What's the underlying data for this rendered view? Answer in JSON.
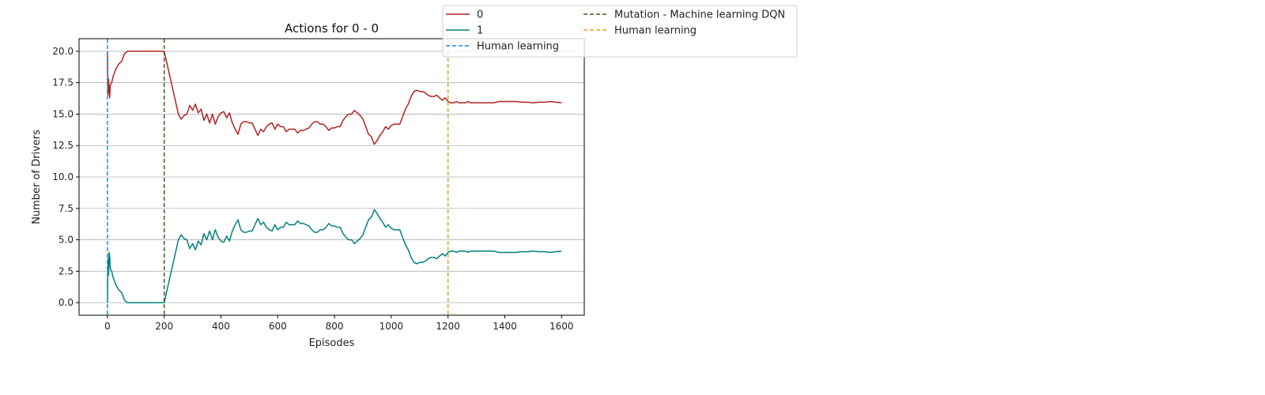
{
  "chart_data": {
    "type": "line",
    "title": "Actions for 0 - 0",
    "xlabel": "Episodes",
    "ylabel": "Number of Drivers",
    "xlim": [
      -100,
      1680
    ],
    "ylim": [
      -1,
      21
    ],
    "xticks": [
      0,
      200,
      400,
      600,
      800,
      1000,
      1200,
      1400,
      1600
    ],
    "yticks": [
      0.0,
      2.5,
      5.0,
      7.5,
      10.0,
      12.5,
      15.0,
      17.5,
      20.0
    ],
    "ytick_labels": [
      "0.0",
      "2.5",
      "5.0",
      "7.5",
      "10.0",
      "12.5",
      "15.0",
      "17.5",
      "20.0"
    ],
    "grid": "horizontal",
    "legend_position": "upper-center-outside",
    "series": [
      {
        "name": "0",
        "color": "#b22222",
        "x": [
          0,
          2,
          4,
          6,
          8,
          10,
          15,
          20,
          30,
          40,
          50,
          60,
          70,
          80,
          100,
          120,
          140,
          160,
          180,
          200,
          210,
          220,
          230,
          240,
          250,
          260,
          270,
          280,
          290,
          300,
          310,
          320,
          330,
          340,
          350,
          360,
          370,
          380,
          390,
          400,
          410,
          420,
          430,
          440,
          450,
          460,
          470,
          480,
          490,
          500,
          510,
          520,
          530,
          540,
          550,
          560,
          570,
          580,
          590,
          600,
          610,
          620,
          630,
          640,
          650,
          660,
          670,
          680,
          690,
          700,
          710,
          720,
          730,
          740,
          750,
          760,
          770,
          780,
          790,
          800,
          810,
          820,
          830,
          840,
          850,
          860,
          870,
          880,
          890,
          900,
          910,
          920,
          930,
          940,
          950,
          960,
          970,
          980,
          990,
          1000,
          1010,
          1020,
          1030,
          1040,
          1050,
          1060,
          1070,
          1080,
          1090,
          1100,
          1110,
          1120,
          1130,
          1140,
          1150,
          1160,
          1170,
          1180,
          1190,
          1200,
          1210,
          1220,
          1230,
          1240,
          1250,
          1260,
          1270,
          1280,
          1300,
          1320,
          1340,
          1360,
          1380,
          1400,
          1420,
          1440,
          1460,
          1480,
          1500,
          1520,
          1540,
          1560,
          1580,
          1600
        ],
        "y": [
          20.0,
          16.5,
          17.8,
          17.0,
          16.3,
          17.3,
          17.5,
          18.0,
          18.6,
          19.0,
          19.2,
          19.8,
          20.0,
          20.0,
          20.0,
          20.0,
          20.0,
          20.0,
          20.0,
          20.0,
          19.0,
          18.0,
          17.0,
          16.0,
          15.0,
          14.6,
          14.9,
          15.0,
          15.7,
          15.3,
          15.8,
          15.1,
          15.4,
          14.5,
          15.0,
          14.3,
          15.0,
          14.2,
          14.8,
          15.1,
          15.2,
          14.7,
          15.1,
          14.3,
          13.8,
          13.4,
          14.2,
          14.4,
          14.4,
          14.3,
          14.3,
          13.8,
          13.3,
          13.8,
          13.6,
          14.0,
          14.2,
          14.3,
          13.8,
          14.2,
          14.0,
          14.0,
          13.6,
          13.8,
          13.8,
          13.8,
          13.5,
          13.7,
          13.7,
          13.8,
          13.9,
          14.2,
          14.4,
          14.4,
          14.2,
          14.2,
          14.0,
          13.7,
          13.9,
          13.9,
          14.0,
          14.0,
          14.5,
          14.8,
          15.0,
          15.0,
          15.3,
          15.1,
          14.9,
          14.6,
          14.0,
          13.4,
          13.2,
          12.6,
          12.9,
          13.3,
          13.6,
          14.0,
          13.8,
          14.1,
          14.2,
          14.2,
          14.2,
          14.8,
          15.4,
          15.8,
          16.4,
          16.8,
          16.9,
          16.8,
          16.8,
          16.7,
          16.5,
          16.4,
          16.4,
          16.5,
          16.3,
          16.1,
          16.3,
          16.0,
          15.9,
          15.9,
          16.0,
          15.9,
          15.9,
          15.9,
          16.0,
          15.9,
          15.9,
          15.9,
          15.9,
          15.9,
          16.0,
          16.0,
          16.0,
          16.0,
          15.95,
          15.95,
          15.9,
          15.95,
          15.95,
          16.0,
          15.95,
          15.9
        ]
      },
      {
        "name": "1",
        "color": "#008080",
        "x": [
          0,
          2,
          4,
          6,
          8,
          10,
          15,
          20,
          30,
          40,
          50,
          60,
          70,
          80,
          100,
          120,
          140,
          160,
          180,
          200,
          210,
          220,
          230,
          240,
          250,
          260,
          270,
          280,
          290,
          300,
          310,
          320,
          330,
          340,
          350,
          360,
          370,
          380,
          390,
          400,
          410,
          420,
          430,
          440,
          450,
          460,
          470,
          480,
          490,
          500,
          510,
          520,
          530,
          540,
          550,
          560,
          570,
          580,
          590,
          600,
          610,
          620,
          630,
          640,
          650,
          660,
          670,
          680,
          690,
          700,
          710,
          720,
          730,
          740,
          750,
          760,
          770,
          780,
          790,
          800,
          810,
          820,
          830,
          840,
          850,
          860,
          870,
          880,
          890,
          900,
          910,
          920,
          930,
          940,
          950,
          960,
          970,
          980,
          990,
          1000,
          1010,
          1020,
          1030,
          1040,
          1050,
          1060,
          1070,
          1080,
          1090,
          1100,
          1110,
          1120,
          1130,
          1140,
          1150,
          1160,
          1170,
          1180,
          1190,
          1200,
          1210,
          1220,
          1230,
          1240,
          1250,
          1260,
          1270,
          1280,
          1300,
          1320,
          1340,
          1360,
          1380,
          1400,
          1420,
          1440,
          1460,
          1480,
          1500,
          1520,
          1540,
          1560,
          1580,
          1600
        ],
        "y": [
          0.0,
          3.5,
          2.2,
          4.0,
          3.7,
          2.7,
          2.5,
          2.0,
          1.4,
          1.0,
          0.8,
          0.2,
          0.0,
          0.0,
          0.0,
          0.0,
          0.0,
          0.0,
          0.0,
          0.0,
          1.0,
          2.0,
          3.0,
          4.0,
          5.0,
          5.4,
          5.1,
          5.0,
          4.3,
          4.7,
          4.2,
          4.9,
          4.6,
          5.5,
          5.0,
          5.7,
          5.0,
          5.8,
          5.2,
          4.9,
          4.8,
          5.3,
          4.9,
          5.7,
          6.2,
          6.6,
          5.8,
          5.6,
          5.6,
          5.7,
          5.7,
          6.2,
          6.7,
          6.2,
          6.4,
          6.0,
          5.8,
          5.7,
          6.2,
          5.8,
          6.0,
          6.0,
          6.4,
          6.2,
          6.2,
          6.2,
          6.5,
          6.3,
          6.3,
          6.2,
          6.1,
          5.8,
          5.6,
          5.6,
          5.8,
          5.8,
          6.0,
          6.3,
          6.1,
          6.1,
          6.0,
          6.0,
          5.5,
          5.2,
          5.0,
          5.0,
          4.7,
          4.9,
          5.1,
          5.4,
          6.0,
          6.6,
          6.8,
          7.4,
          7.1,
          6.7,
          6.4,
          6.0,
          6.2,
          5.9,
          5.8,
          5.8,
          5.8,
          5.2,
          4.6,
          4.2,
          3.6,
          3.2,
          3.1,
          3.2,
          3.2,
          3.3,
          3.5,
          3.6,
          3.6,
          3.5,
          3.7,
          3.9,
          3.7,
          4.0,
          4.1,
          4.1,
          4.0,
          4.1,
          4.1,
          4.1,
          4.0,
          4.1,
          4.1,
          4.1,
          4.1,
          4.1,
          4.0,
          4.0,
          4.0,
          4.0,
          4.05,
          4.05,
          4.1,
          4.05,
          4.05,
          4.0,
          4.05,
          4.1
        ]
      }
    ],
    "vlines": [
      {
        "name": "Human learning",
        "x": 0,
        "color": "#1e88e5",
        "style": "dashed"
      },
      {
        "name": "Mutation - Machine learning DQN",
        "x": 200,
        "color": "#3b5e1e",
        "style": "dashed"
      },
      {
        "name": "Human learning",
        "x": 1200,
        "color": "#e0a020",
        "style": "dashed"
      }
    ],
    "legend": [
      {
        "label": "0",
        "color": "#b22222",
        "style": "solid"
      },
      {
        "label": "1",
        "color": "#008080",
        "style": "solid"
      },
      {
        "label": "Human learning",
        "color": "#1e88e5",
        "style": "dashed"
      },
      {
        "label": "Mutation - Machine learning DQN",
        "color": "#3b5e1e",
        "style": "dashed"
      },
      {
        "label": "Human learning",
        "color": "#e0a020",
        "style": "dashed"
      }
    ]
  }
}
